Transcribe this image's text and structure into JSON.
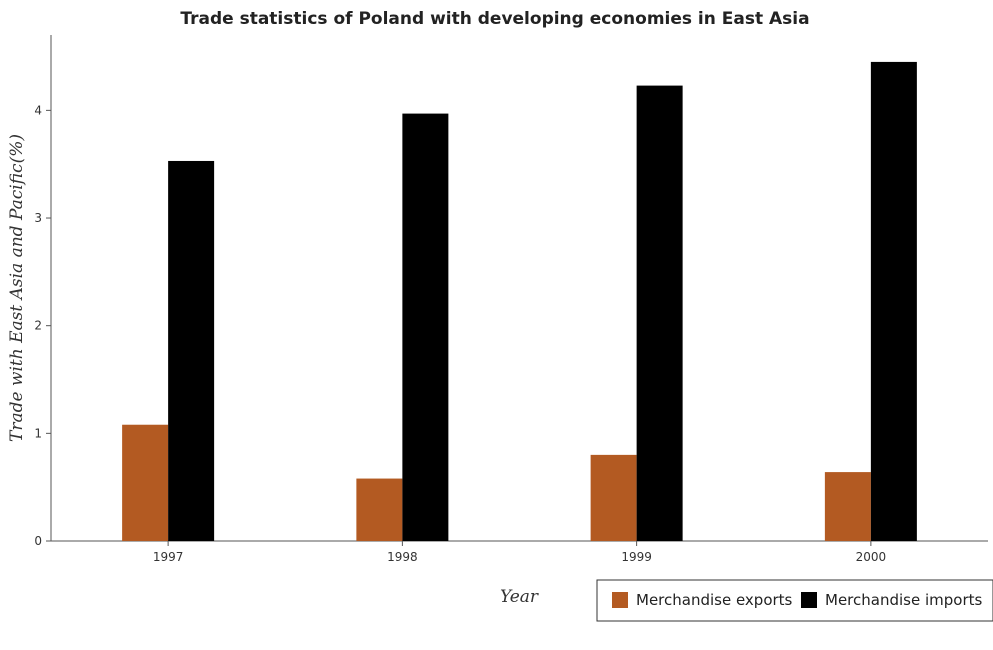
{
  "chart_data": {
    "type": "bar",
    "title": "Trade statistics of Poland with developing economies in East Asia",
    "xlabel": "Year",
    "ylabel": "Trade with East Asia and Pacific(%)",
    "categories": [
      "1997",
      "1998",
      "1999",
      "2000"
    ],
    "series": [
      {
        "name": "Merchandise exports",
        "color": "#b35a22",
        "values": [
          1.08,
          0.58,
          0.8,
          0.64
        ]
      },
      {
        "name": "Merchandise imports",
        "color": "#000000",
        "values": [
          3.53,
          3.97,
          4.23,
          4.45
        ]
      }
    ],
    "ylim": [
      0,
      4.7
    ],
    "yticks": [
      "0",
      "1",
      "2",
      "3",
      "4"
    ],
    "grid": false,
    "legend_position": "bottom-right"
  }
}
